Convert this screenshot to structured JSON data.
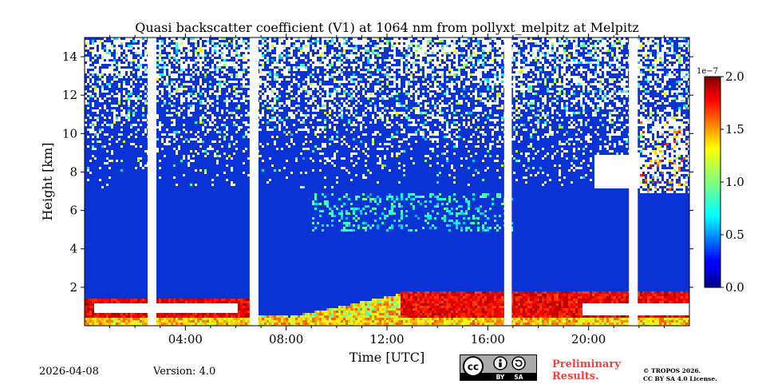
{
  "chart_data": {
    "type": "heatmap",
    "title": "Quasi backscatter coefficient (V1) at 1064 nm from pollyxt_melpitz at Melpitz",
    "xlabel": "Time [UTC]",
    "ylabel": "Height [km]",
    "xlim_hours": [
      0,
      24
    ],
    "ylim_km": [
      0,
      15
    ],
    "xticks_major": [
      4,
      8,
      12,
      16,
      20
    ],
    "xtick_labels": [
      "04:00",
      "08:00",
      "12:00",
      "16:00",
      "20:00"
    ],
    "xticks_minor": [
      1,
      2,
      3,
      5,
      6,
      7,
      9,
      10,
      11,
      13,
      14,
      15,
      17,
      18,
      19,
      21,
      22,
      23
    ],
    "yticks": [
      2,
      4,
      6,
      8,
      10,
      12,
      14
    ],
    "ytick_labels": [
      "2",
      "4",
      "6",
      "8",
      "10",
      "12",
      "14"
    ],
    "gaps_hours": [
      [
        2.5,
        2.85
      ],
      [
        6.55,
        6.9
      ],
      [
        16.65,
        16.95
      ],
      [
        21.6,
        21.95
      ]
    ],
    "colorbar": {
      "range": [
        0.0,
        2.0
      ],
      "ticks": [
        0.0,
        0.5,
        1.0,
        1.5,
        2.0
      ],
      "tick_labels": [
        "0.0",
        "0.5",
        "1.0",
        "1.5",
        "2.0"
      ],
      "offset_label": "1e−7",
      "colormap": "jet"
    }
  },
  "footer": {
    "date": "2026-04-08",
    "version": "Version: 4.0",
    "preliminary_line1": "Preliminary",
    "preliminary_line2": "Results.",
    "copyright_line1": "© TROPOS 2026.",
    "copyright_line2": "CC BY SA 4.0 License.",
    "badge_by": "BY",
    "badge_sa": "SA",
    "badge_cc": "cc"
  },
  "colors": {
    "preliminary": "#ff3b3b",
    "background_blue": "#0a33d6",
    "badge_grey": "#a9aaa9"
  }
}
